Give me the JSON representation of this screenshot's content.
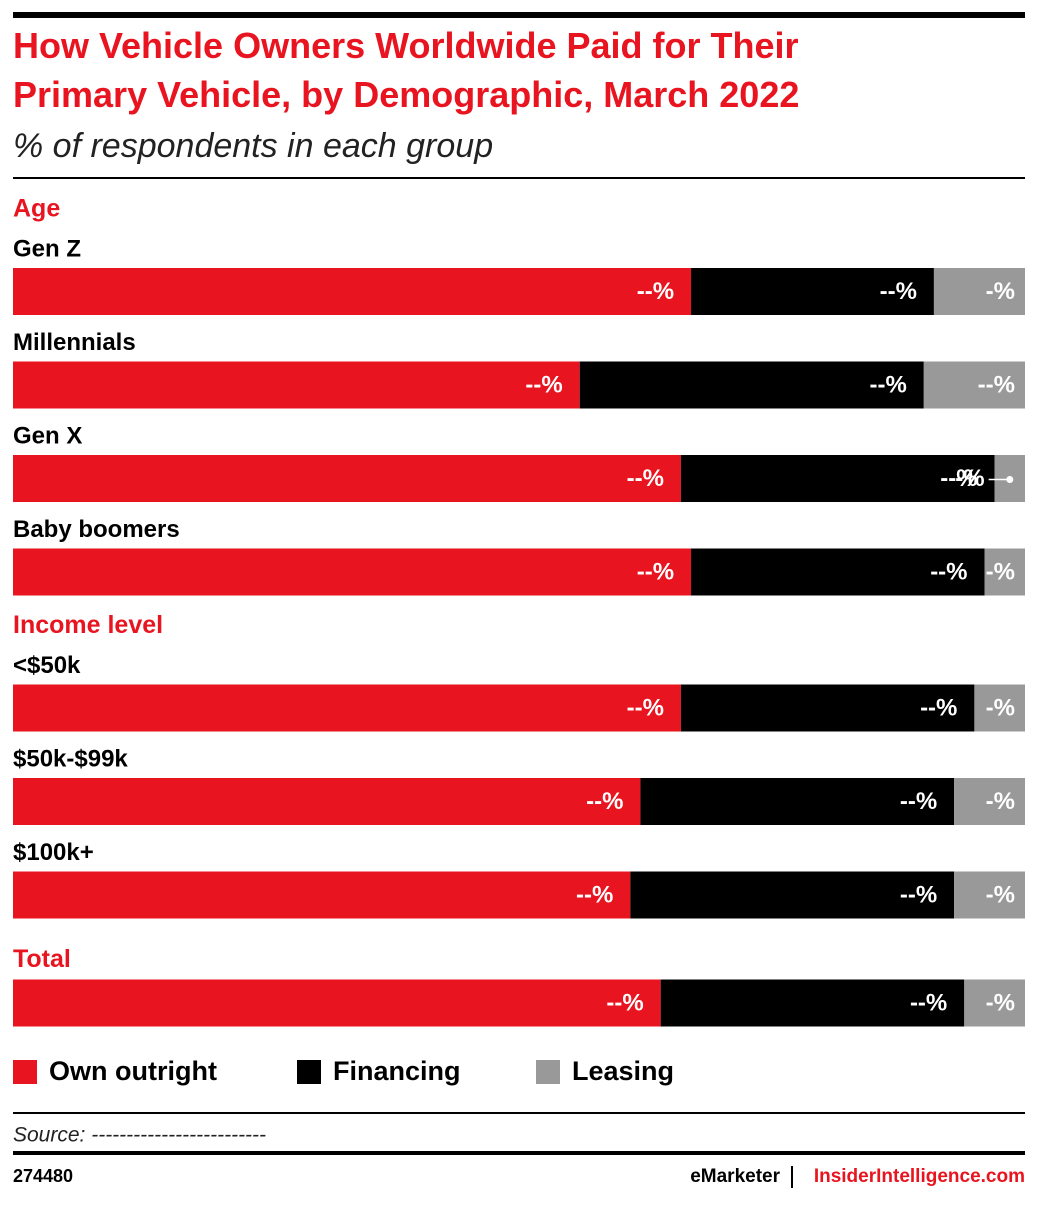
{
  "chart_data": {
    "type": "stacked-bar",
    "title": "How Vehicle Owners Worldwide Paid for Their Primary Vehicle, by Demographic, March 2022",
    "subtitle": "% of respondents in each group",
    "groups": [
      {
        "name": "Age",
        "categories": [
          "Gen  Z",
          "Millennials",
          "Gen  X",
          "Baby boomers"
        ]
      },
      {
        "name": "Income level",
        "categories": [
          "<$50k",
          "$50k-$99k",
          "$100k+"
        ]
      },
      {
        "name": "Total",
        "categories": [
          null
        ]
      }
    ],
    "series": [
      {
        "name": "Own outright",
        "color": "#e8141f",
        "values": [
          67,
          56,
          66,
          67,
          66,
          62,
          61,
          64
        ],
        "value_labels": [
          "--%",
          "--%",
          "--%",
          "--%",
          "--%",
          "--%",
          "--%",
          "--%"
        ]
      },
      {
        "name": "Financing",
        "color": "#000000",
        "values": [
          24,
          34,
          31,
          29,
          29,
          31,
          32,
          30
        ],
        "value_labels": [
          "--%",
          "--%",
          "--%",
          "--%",
          "--%",
          "--%",
          "--%",
          "--%"
        ]
      },
      {
        "name": "Leasing",
        "color": "#999999",
        "values": [
          9,
          10,
          3,
          4,
          5,
          7,
          7,
          6
        ],
        "value_labels": [
          "-%",
          "--%",
          "-%",
          "-%",
          "-%",
          "-%",
          "-%",
          "-%"
        ]
      }
    ],
    "xlim": [
      0,
      100
    ],
    "source": "Source: -------------------------",
    "chart_id": "274480",
    "footer_brand": "eMarketer",
    "footer_site": "InsiderIntelligence.com"
  }
}
